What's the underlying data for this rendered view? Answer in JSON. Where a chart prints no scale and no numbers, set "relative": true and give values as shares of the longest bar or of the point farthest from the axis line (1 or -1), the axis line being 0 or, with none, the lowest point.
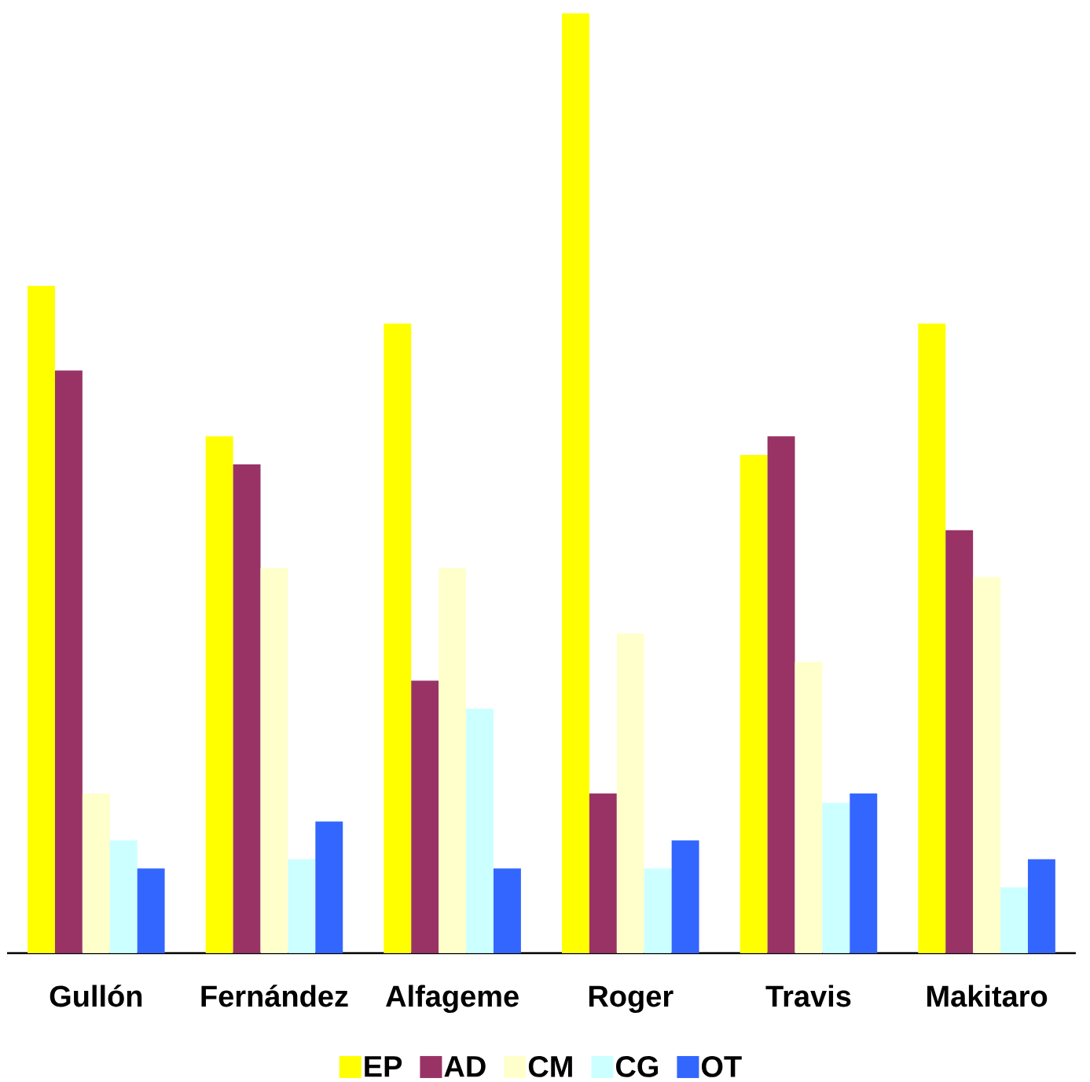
{
  "chart_data": {
    "type": "bar",
    "relative": true,
    "legend": "bottom",
    "categories": [
      "Gullón",
      "Fernández",
      "Alfageme",
      "Roger",
      "Travis",
      "Makitaro"
    ],
    "series": [
      {
        "name": "EP",
        "color": "#ffff00",
        "values": [
          0.71,
          0.55,
          0.67,
          1,
          0.53,
          0.67
        ]
      },
      {
        "name": "AD",
        "color": "#993366",
        "values": [
          0.62,
          0.52,
          0.29,
          0.17,
          0.55,
          0.45
        ]
      },
      {
        "name": "CM",
        "color": "#ffffcc",
        "values": [
          0.17,
          0.41,
          0.41,
          0.34,
          0.31,
          0.4
        ]
      },
      {
        "name": "CG",
        "color": "#ccffff",
        "values": [
          0.12,
          0.1,
          0.26,
          0.09,
          0.16,
          0.07
        ]
      },
      {
        "name": "OT",
        "color": "#3366ff",
        "values": [
          0.09,
          0.14,
          0.09,
          0.12,
          0.17,
          0.1
        ]
      }
    ]
  }
}
